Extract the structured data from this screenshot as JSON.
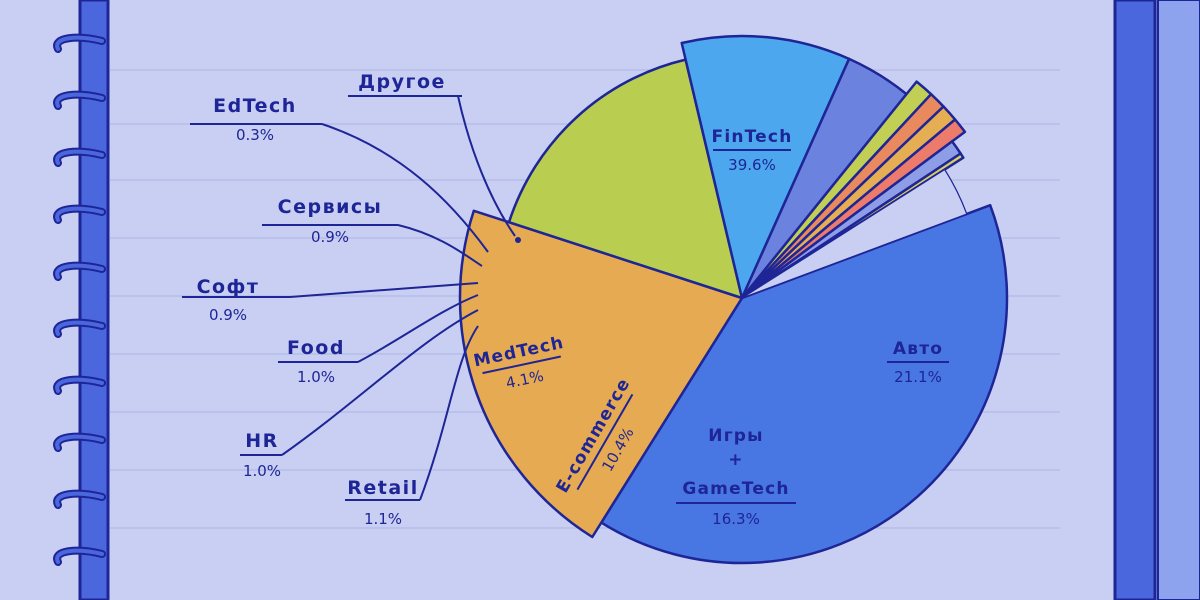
{
  "chart_data": {
    "type": "pie",
    "title": "",
    "unit": "%",
    "slices": [
      {
        "label": "FinTech",
        "value": 39.6,
        "value_text": "39.6%",
        "color": "#4876e3"
      },
      {
        "label": "Авто",
        "value": 21.1,
        "value_text": "21.1%",
        "color": "#e6aa52"
      },
      {
        "label": "Игры + GameTech",
        "value": 16.3,
        "value_text": "16.3%",
        "color": "#b9ce50"
      },
      {
        "label": "E-commerce",
        "value": 10.4,
        "value_text": "10.4%",
        "color": "#4da7ee"
      },
      {
        "label": "MedTech",
        "value": 4.1,
        "value_text": "4.1%",
        "color": "#6c82df"
      },
      {
        "label": "Retail",
        "value": 1.1,
        "value_text": "1.1%",
        "color": "#c2cf55"
      },
      {
        "label": "HR",
        "value": 1.0,
        "value_text": "1.0%",
        "color": "#e98a5e"
      },
      {
        "label": "Food",
        "value": 1.0,
        "value_text": "1.0%",
        "color": "#e6ae53"
      },
      {
        "label": "Софт",
        "value": 0.9,
        "value_text": "0.9%",
        "color": "#ec7b6b"
      },
      {
        "label": "Сервисы",
        "value": 0.9,
        "value_text": "0.9%",
        "color": "#8e9ee6"
      },
      {
        "label": "EdTech",
        "value": 0.3,
        "value_text": "0.3%",
        "color": "#d9cf60"
      },
      {
        "label": "Другое",
        "value": 3.3,
        "value_text": "",
        "color": "#c9cff2"
      }
    ]
  },
  "colors": {
    "background": "#c9cff2",
    "ink": "#1e2596",
    "rule_lines": "#aab3e4",
    "spine": "#4a67de"
  }
}
